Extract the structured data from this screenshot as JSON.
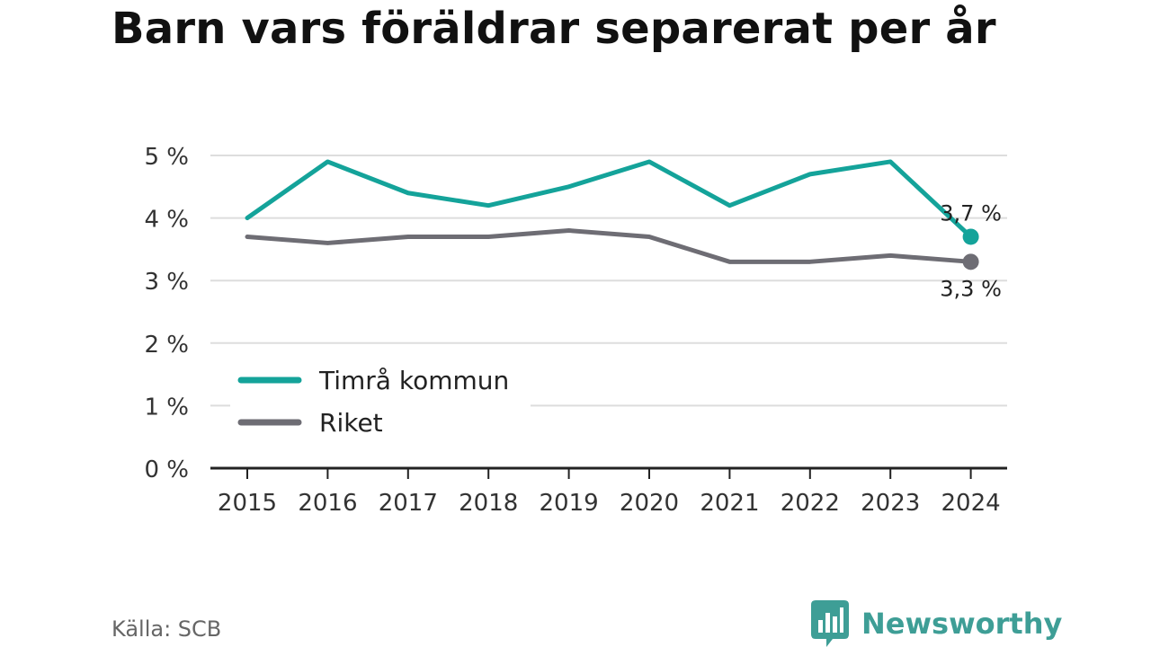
{
  "title": "Barn vars föräldrar separerat per år",
  "source": "Källa: SCB",
  "brand": {
    "name": "Newsworthy",
    "icon": "newsworthy-logo-icon",
    "color": "#3e9e96"
  },
  "chart_data": {
    "type": "line",
    "title": "Barn vars föräldrar separerat per år",
    "x": [
      "2015",
      "2016",
      "2017",
      "2018",
      "2019",
      "2020",
      "2021",
      "2022",
      "2023",
      "2024"
    ],
    "series": [
      {
        "name": "Timrå kommun",
        "color": "#14a39a",
        "values": [
          4.0,
          4.9,
          4.4,
          4.2,
          4.5,
          4.9,
          4.2,
          4.7,
          4.9,
          3.7
        ],
        "end_label": "3,7 %"
      },
      {
        "name": "Riket",
        "color": "#6e6d74",
        "values": [
          3.7,
          3.6,
          3.7,
          3.7,
          3.8,
          3.7,
          3.3,
          3.3,
          3.4,
          3.3
        ],
        "end_label": "3,3 %"
      }
    ],
    "ylim": [
      0,
      5
    ],
    "yticks": [
      0,
      1,
      2,
      3,
      4,
      5
    ],
    "ytick_labels": [
      "0 %",
      "1 %",
      "2 %",
      "3 %",
      "4 %",
      "5 %"
    ],
    "xlabel": "",
    "ylabel": "",
    "grid": true,
    "legend": "lower-left"
  }
}
